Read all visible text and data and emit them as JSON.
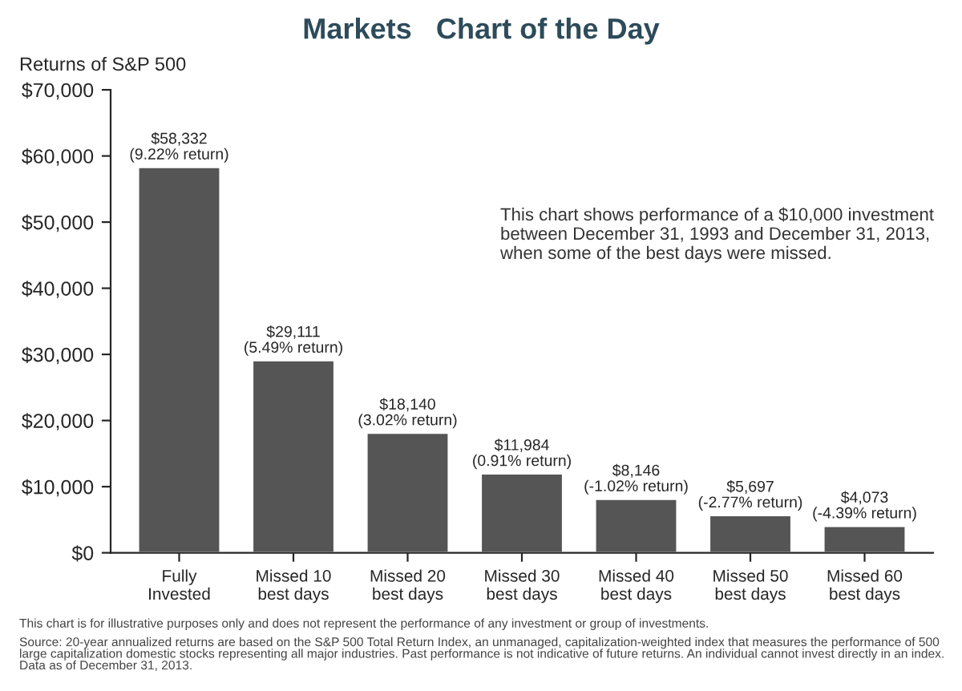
{
  "chart_data": {
    "type": "bar",
    "title": "Markets   Chart of the Day",
    "ylabel": "Returns of S&P 500",
    "categories": [
      "Fully\nInvested",
      "Missed 10\nbest days",
      "Missed 20\nbest days",
      "Missed 30\nbest days",
      "Missed 40\nbest days",
      "Missed 50\nbest days",
      "Missed 60\nbest days"
    ],
    "values": [
      58332,
      29111,
      18140,
      11984,
      8146,
      5697,
      4073
    ],
    "value_labels": [
      "$58,332\n(9.22% return)",
      "$29,111\n(5.49% return)",
      "$18,140\n(3.02% return)",
      "$11,984\n(0.91% return)",
      "$8,146\n(-1.02% return)",
      "$5,697\n(-2.77% return)",
      "$4,073\n(-4.39% return)"
    ],
    "color": "#555555",
    "ylim": [
      0,
      70000
    ],
    "yticks": [
      {
        "value": 0,
        "label": "$0"
      },
      {
        "value": 10000,
        "label": "$10,000"
      },
      {
        "value": 20000,
        "label": "$20,000"
      },
      {
        "value": 30000,
        "label": "$30,000"
      },
      {
        "value": 40000,
        "label": "$40,000"
      },
      {
        "value": 50000,
        "label": "$50,000"
      },
      {
        "value": 60000,
        "label": "$60,000"
      },
      {
        "value": 70000,
        "label": "$70,000"
      }
    ],
    "grid": false,
    "annotations": [
      "This chart shows performance of a $10,000 investment between December 31, 1993 and December 31, 2013, when some of the best days were missed.",
      "This chart is for illustrative purposes only and does not represent the performance of any investment or group of investments.",
      "Source: 20-year annualized returns are based on the S&P 500 Total Return Index, an unmanaged, capitalization-weighted index that measures the performance of 500 large capitalization domestic stocks representing all major industries. Past performance is not indicative of future returns. An individual cannot invest directly in an index. Data as of December 31, 2013."
    ]
  }
}
